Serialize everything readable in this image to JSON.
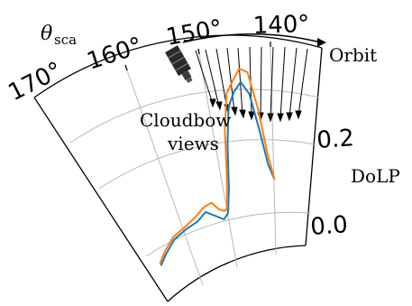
{
  "diagram": {
    "axis_label": "θ",
    "axis_label_sub": "sca",
    "angle_ticks": [
      "170°",
      "160°",
      "150°",
      "140°"
    ],
    "dolp_ticks": [
      "0.2",
      "0.0"
    ],
    "dolp_label": "DoLP",
    "orbit_label": "Orbit",
    "views_label_line1": "Cloudbow",
    "views_label_line2": "views"
  },
  "chart_data": {
    "type": "line",
    "x_axis": "scattering angle (deg)",
    "y_axis": "DoLP",
    "xlim": [
      170,
      135
    ],
    "ylim": [
      -0.05,
      0.3
    ],
    "series": [
      {
        "color": "#1f77b4",
        "points": [
          [
            167.2,
            -0.04
          ],
          [
            165,
            -0.02
          ],
          [
            162,
            0.005
          ],
          [
            159,
            0.02
          ],
          [
            156.5,
            0.03
          ],
          [
            154.5,
            0.045
          ],
          [
            153,
            0.035
          ],
          [
            151.5,
            0.025
          ],
          [
            150.5,
            0.035
          ],
          [
            149.5,
            0.08
          ],
          [
            148.5,
            0.16
          ],
          [
            147.5,
            0.23
          ],
          [
            146.5,
            0.255
          ],
          [
            145.5,
            0.27
          ],
          [
            144.5,
            0.245
          ],
          [
            143.5,
            0.175
          ],
          [
            142.5,
            0.11
          ],
          [
            141.5,
            0.08
          ]
        ]
      },
      {
        "color": "#ff7f0e",
        "points": [
          [
            167.2,
            -0.036
          ],
          [
            165,
            -0.015
          ],
          [
            162,
            0.01
          ],
          [
            159,
            0.025
          ],
          [
            156.5,
            0.04
          ],
          [
            154.5,
            0.055
          ],
          [
            153,
            0.06
          ],
          [
            152,
            0.045
          ],
          [
            151,
            0.04
          ],
          [
            150.5,
            0.045
          ],
          [
            149.5,
            0.1
          ],
          [
            148.5,
            0.19
          ],
          [
            147.5,
            0.255
          ],
          [
            146.5,
            0.275
          ],
          [
            145.5,
            0.295
          ],
          [
            144.5,
            0.285
          ],
          [
            143.5,
            0.215
          ],
          [
            142.5,
            0.13
          ],
          [
            141.5,
            0.08
          ]
        ]
      }
    ]
  }
}
